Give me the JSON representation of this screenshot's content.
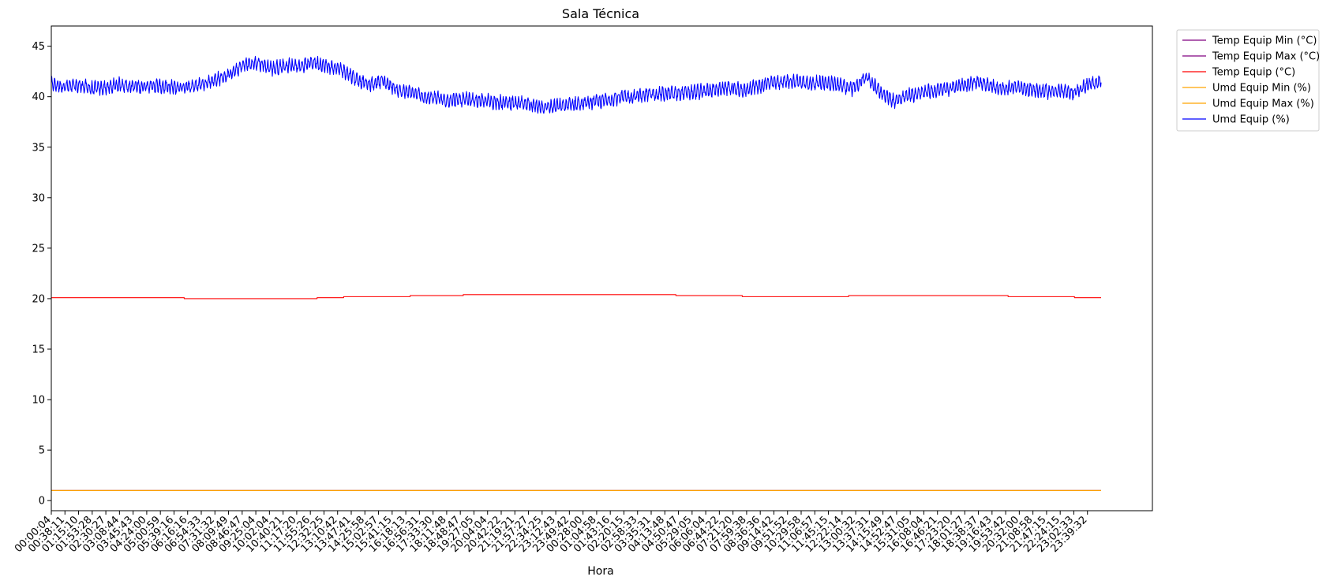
{
  "chart_data": {
    "type": "line",
    "title": "Sala Técnica",
    "xlabel": "Hora",
    "ylabel": "",
    "ylim": [
      -1,
      47
    ],
    "yticks": [
      0,
      5,
      10,
      15,
      20,
      25,
      30,
      35,
      40,
      45
    ],
    "xtick_labels": [
      "00:00:04",
      "00:38:11",
      "01:15:10",
      "01:53:28",
      "02:30:27",
      "03:08:44",
      "03:45:43",
      "04:24:00",
      "05:00:59",
      "05:39:16",
      "06:16:16",
      "06:54:33",
      "07:31:32",
      "08:09:49",
      "08:46:47",
      "09:25:04",
      "10:02:04",
      "10:40:21",
      "11:17:20",
      "11:55:26",
      "12:32:25",
      "13:10:42",
      "13:47:41",
      "14:25:58",
      "15:02:57",
      "15:41:15",
      "16:18:13",
      "16:56:31",
      "17:33:30",
      "18:11:48",
      "18:48:47",
      "19:27:05",
      "20:04:04",
      "20:42:22",
      "21:19:21",
      "21:57:27",
      "22:34:25",
      "23:12:43",
      "23:49:42",
      "00:28:00",
      "01:04:58",
      "01:43:16",
      "02:20:15",
      "02:58:33",
      "03:35:31",
      "04:13:48",
      "04:50:47",
      "05:29:05",
      "06:06:04",
      "06:44:22",
      "07:21:20",
      "07:59:38",
      "08:36:36",
      "09:14:42",
      "09:51:52",
      "10:29:58",
      "11:06:57",
      "11:45:15",
      "12:22:14",
      "13:00:32",
      "13:37:31",
      "14:15:49",
      "14:52:47",
      "15:31:05",
      "16:08:04",
      "16:46:21",
      "17:23:20",
      "18:01:27",
      "18:38:37",
      "19:16:43",
      "19:53:42",
      "20:32:00",
      "21:08:58",
      "21:47:15",
      "22:24:15",
      "23:02:33",
      "23:39:32"
    ],
    "legend_position": "outside-top-right",
    "grid": false,
    "series": [
      {
        "name": "Temp Equip Min (°C)",
        "color": "#800080",
        "values": [
          1,
          1,
          1,
          1,
          1
        ]
      },
      {
        "name": "Temp Equip Max (°C)",
        "color": "#800080",
        "values": [
          1,
          1,
          1,
          1,
          1
        ]
      },
      {
        "name": "Temp Equip (°C)",
        "color": "#ff0000",
        "step_values": [
          20.1,
          20.1,
          20.1,
          20.1,
          20.1,
          20.1,
          20.1,
          20.1,
          20.1,
          20.1,
          20.0,
          20.0,
          20.0,
          20.0,
          20.0,
          20.0,
          20.0,
          20.0,
          20.0,
          20.0,
          20.1,
          20.1,
          20.2,
          20.2,
          20.2,
          20.2,
          20.2,
          20.3,
          20.3,
          20.3,
          20.3,
          20.4,
          20.4,
          20.4,
          20.4,
          20.4,
          20.4,
          20.4,
          20.4,
          20.4,
          20.4,
          20.4,
          20.4,
          20.4,
          20.4,
          20.4,
          20.4,
          20.3,
          20.3,
          20.3,
          20.3,
          20.3,
          20.2,
          20.2,
          20.2,
          20.2,
          20.2,
          20.2,
          20.2,
          20.2,
          20.3,
          20.3,
          20.3,
          20.3,
          20.3,
          20.3,
          20.3,
          20.3,
          20.3,
          20.3,
          20.3,
          20.3,
          20.2,
          20.2,
          20.2,
          20.2,
          20.2,
          20.1,
          20.1
        ]
      },
      {
        "name": "Umd Equip Min (%)",
        "color": "#ffa500",
        "values": [
          1,
          1,
          1,
          1,
          1
        ]
      },
      {
        "name": "Umd Equip Max (%)",
        "color": "#ffa500",
        "values": [
          1,
          1,
          1,
          1,
          1
        ]
      },
      {
        "name": "Umd Equip (%)",
        "color": "#0000ff",
        "anchor_values": [
          41.2,
          41.0,
          41.1,
          40.8,
          40.9,
          41.2,
          41.0,
          41.1,
          41.0,
          40.9,
          41.0,
          41.3,
          41.7,
          42.3,
          43.2,
          43.3,
          42.8,
          43.1,
          43.0,
          43.4,
          43.0,
          42.7,
          41.8,
          41.2,
          41.6,
          40.7,
          40.4,
          40.0,
          39.8,
          39.6,
          39.7,
          39.6,
          39.5,
          39.4,
          39.3,
          39.1,
          39.0,
          39.1,
          39.3,
          39.4,
          39.6,
          39.9,
          40.0,
          40.2,
          40.3,
          40.3,
          40.4,
          40.5,
          40.7,
          40.9,
          40.6,
          41.0,
          41.3,
          41.5,
          41.5,
          41.3,
          41.4,
          41.2,
          40.8,
          42.0,
          40.5,
          39.6,
          40.1,
          40.4,
          40.6,
          40.8,
          41.2,
          41.4,
          41.0,
          40.8,
          40.9,
          40.7,
          40.5,
          40.6,
          40.4,
          41.1,
          41.6
        ]
      }
    ]
  }
}
